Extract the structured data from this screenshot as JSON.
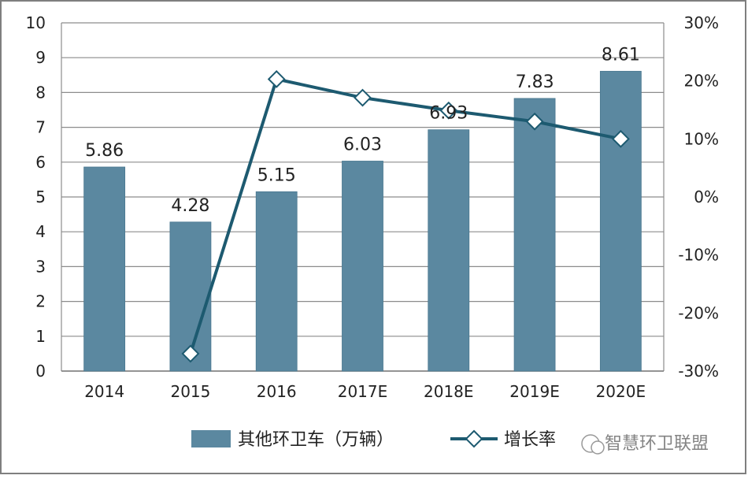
{
  "chart_data": {
    "type": "bar",
    "categories": [
      "2014",
      "2015",
      "2016",
      "2017E",
      "2018E",
      "2019E",
      "2020E"
    ],
    "series": [
      {
        "name": "其他环卫车（万辆）",
        "type": "bar",
        "axis": "left",
        "values": [
          5.86,
          4.28,
          5.15,
          6.03,
          6.93,
          7.83,
          8.61
        ],
        "data_labels": [
          "5.86",
          "4.28",
          "5.15",
          "6.03",
          "6.93",
          "7.83",
          "8.61"
        ],
        "color": "#5b88a0"
      },
      {
        "name": "增长率",
        "type": "line",
        "axis": "right",
        "values": [
          null,
          -27.0,
          20.3,
          17.1,
          14.9,
          13.0,
          10.0
        ],
        "color": "#1d5a70",
        "marker": "diamond"
      }
    ],
    "y_left": {
      "ylim": [
        0,
        10
      ],
      "ticks": [
        "0",
        "1",
        "2",
        "3",
        "4",
        "5",
        "6",
        "7",
        "8",
        "9",
        "10"
      ]
    },
    "y_right": {
      "ylim": [
        -30,
        30
      ],
      "ticks": [
        "-30%",
        "-20%",
        "-10%",
        "0%",
        "10%",
        "20%",
        "30%"
      ]
    },
    "grid": true,
    "legend": "bottom"
  },
  "watermark": {
    "icon": "wechat-icon",
    "text": "智慧环卫联盟"
  }
}
